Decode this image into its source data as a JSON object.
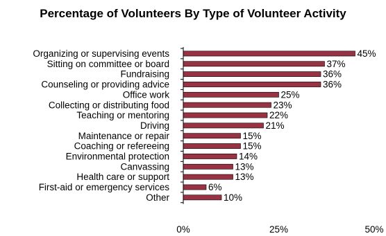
{
  "chart_data": {
    "type": "bar",
    "orientation": "horizontal",
    "title": "Percentage of Volunteers By Type of Volunteer Activity",
    "categories": [
      "Organizing or supervising events",
      "Sitting on committee or board",
      "Fundraising",
      "Counseling or providing advice",
      "Office work",
      "Collecting or distributing food",
      "Teaching or mentoring",
      "Driving",
      "Maintenance or repair",
      "Coaching or refereeing",
      "Environmental protection",
      "Canvassing",
      "Health care or support",
      "First-aid or emergency services",
      "Other"
    ],
    "values": [
      45,
      37,
      36,
      36,
      25,
      23,
      22,
      21,
      15,
      15,
      14,
      13,
      13,
      6,
      10
    ],
    "data_labels": [
      "45%",
      "37%",
      "36%",
      "36%",
      "25%",
      "23%",
      "22%",
      "21%",
      "15%",
      "15%",
      "14%",
      "13%",
      "13%",
      "6%",
      "10%"
    ],
    "xlim": [
      0,
      50
    ],
    "xticks": [
      0,
      25,
      50
    ],
    "xtick_labels": [
      "0%",
      "25%",
      "50%"
    ],
    "xlabel": "",
    "ylabel": "",
    "grid": false,
    "legend": "none",
    "bar_color": "#993344",
    "bar_edge_color": "#000000"
  }
}
